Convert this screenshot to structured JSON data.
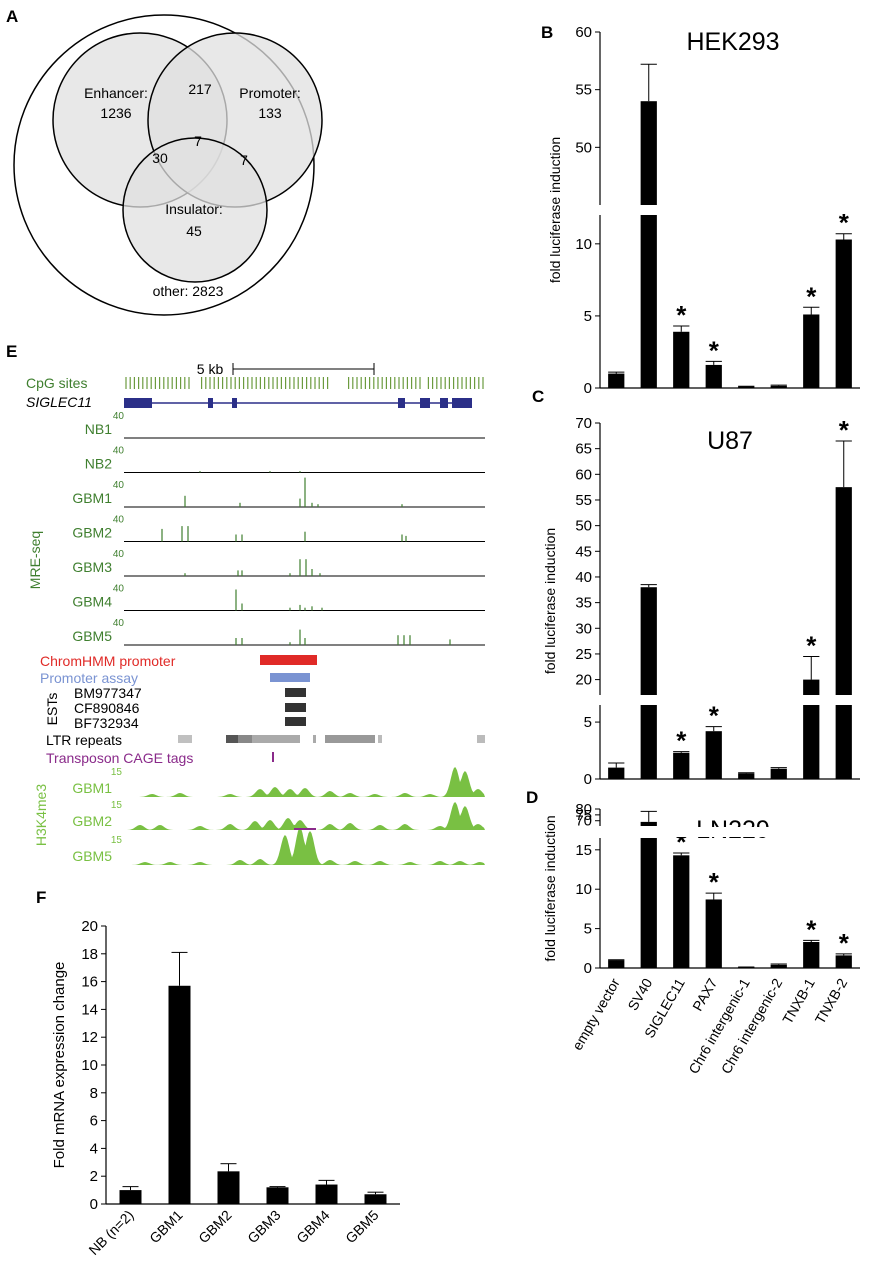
{
  "panel_labels": {
    "a": "A",
    "b": "B",
    "c": "C",
    "d": "D",
    "e": "E",
    "f": "F"
  },
  "venn": {
    "enhancer_label": "Enhancer:",
    "enhancer_value": "1236",
    "promoter_label": "Promoter:",
    "promoter_value": "133",
    "insulator_label": "Insulator:",
    "insulator_value": "45",
    "enh_prom": "217",
    "enh_ins": "30",
    "prom_ins": "7",
    "center": "7",
    "other": "other: 2823"
  },
  "track": {
    "scale_label": "5 kb",
    "cpg_label": "CpG sites",
    "gene_label": "SIGLEC11",
    "mre_label": "MRE-seq",
    "mre_max": "40",
    "mre_samples": [
      "NB1",
      "NB2",
      "GBM1",
      "GBM2",
      "GBM3",
      "GBM4",
      "GBM5"
    ],
    "chromhmm_label": "ChromHMM promoter",
    "promoter_assay_label": "Promoter assay",
    "est_group_label": "ESTs",
    "ests": [
      "BM977347",
      "CF890846",
      "BF732934"
    ],
    "ltr_label": "LTR repeats",
    "cage_label": "Transposon CAGE tags",
    "h3k_label": "H3K4me3",
    "h3k_max": "15",
    "h3k_samples": [
      "GBM1",
      "GBM2",
      "GBM5"
    ],
    "colors": {
      "chromhmm": "#e02a27",
      "promoter": "#7a93d2",
      "cage": "#8a2a8a",
      "h3k": "#79c043",
      "mre": "#3f7f2f",
      "gene": "#2b2f88"
    }
  },
  "chart_data": [
    {
      "panel": "B",
      "type": "bar",
      "title": "HEK293",
      "ylabel": "fold luciferase induction",
      "categories": [
        "empty vector",
        "SV40",
        "SIGLEC11",
        "PAX7",
        "Chr6 intergenic-1",
        "Chr6 intergenic-2",
        "TNXB-1",
        "TNXB-2"
      ],
      "values": [
        1.0,
        54,
        3.9,
        1.6,
        0.1,
        0.15,
        5.1,
        10.3
      ],
      "errors": [
        0.1,
        3.2,
        0.4,
        0.25,
        0.02,
        0.05,
        0.5,
        0.4
      ],
      "significant": [
        false,
        false,
        true,
        true,
        false,
        false,
        true,
        true
      ],
      "axis_break": {
        "lower_max": 12,
        "upper_min": 45
      },
      "lower_ticks": [
        "0",
        "5",
        "10"
      ],
      "upper_ticks": [
        "50",
        "55",
        "60"
      ]
    },
    {
      "panel": "C",
      "type": "bar",
      "title": "U87",
      "ylabel": "fold luciferase induction",
      "categories": [
        "empty vector",
        "SV40",
        "SIGLEC11",
        "PAX7",
        "Chr6 intergenic-1",
        "Chr6 intergenic-2",
        "TNXB-1",
        "TNXB-2"
      ],
      "values": [
        1.0,
        38,
        2.3,
        4.2,
        0.5,
        0.9,
        20,
        57.5
      ],
      "errors": [
        0.4,
        0.5,
        0.1,
        0.4,
        0.05,
        0.1,
        4.5,
        9
      ],
      "significant": [
        false,
        false,
        true,
        true,
        false,
        false,
        true,
        true
      ],
      "axis_break": {
        "lower_max": 6.5,
        "upper_min": 17
      },
      "lower_ticks": [
        "0",
        "5"
      ],
      "upper_ticks": [
        "20",
        "25",
        "30",
        "35",
        "40",
        "45",
        "50",
        "55",
        "60",
        "65",
        "70"
      ]
    },
    {
      "panel": "D",
      "type": "bar",
      "title": "LN229",
      "ylabel": "fold luciferase induction",
      "categories": [
        "empty vector",
        "SV40",
        "SIGLEC11",
        "PAX7",
        "Chr6 intergenic-1",
        "Chr6 intergenic-2",
        "TNXB-1",
        "TNXB-2"
      ],
      "values": [
        1.0,
        69,
        14.3,
        8.7,
        0.1,
        0.4,
        3.3,
        1.6
      ],
      "errors": [
        0.05,
        9,
        0.3,
        0.8,
        0.02,
        0.1,
        0.2,
        0.2
      ],
      "significant": [
        false,
        false,
        true,
        true,
        false,
        false,
        true,
        true
      ],
      "axis_break": {
        "lower_max": 16.5,
        "upper_min": 65.5
      },
      "lower_ticks": [
        "0",
        "5",
        "10",
        "15"
      ],
      "upper_ticks": [
        "70",
        "75",
        "80"
      ]
    },
    {
      "panel": "F",
      "type": "bar",
      "ylabel": "Fold mRNA expression change",
      "categories": [
        "NB (n=2)",
        "GBM1",
        "GBM2",
        "GBM3",
        "GBM4",
        "GBM5"
      ],
      "values": [
        1.0,
        15.7,
        2.35,
        1.2,
        1.4,
        0.7
      ],
      "errors": [
        0.25,
        2.4,
        0.55,
        0.05,
        0.3,
        0.15
      ],
      "ylim": [
        0,
        20
      ],
      "ticks": [
        "0",
        "2",
        "4",
        "6",
        "8",
        "10",
        "12",
        "14",
        "16",
        "18",
        "20"
      ]
    }
  ]
}
